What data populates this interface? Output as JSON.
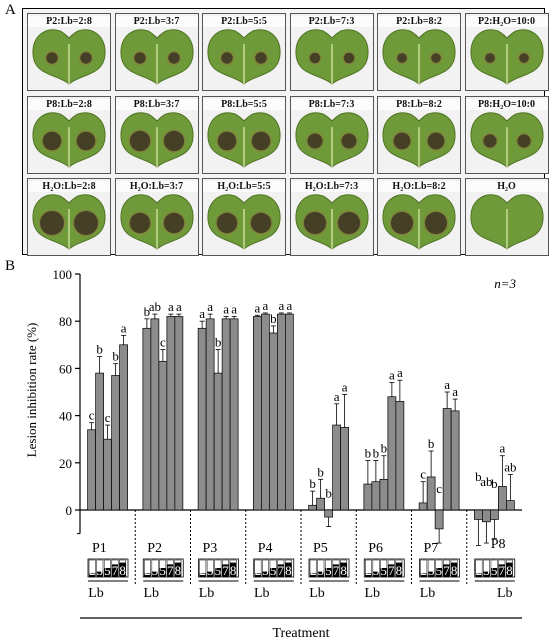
{
  "panel_a": {
    "label": "A",
    "rows": [
      [
        "P2:Lb=2:8",
        "P2:Lb=3:7",
        "P2:Lb=5:5",
        "P2:Lb=7:3",
        "P2:Lb=8:2",
        "P2:H₂O=10:0"
      ],
      [
        "P8:Lb=2:8",
        "P8:Lb=3:7",
        "P8:Lb=5:5",
        "P8:Lb=7:3",
        "P8:Lb=8:2",
        "P8:H₂O=10:0"
      ],
      [
        "H₂O:Lb=2:8",
        "H₂O:Lb=3:7",
        "H₂O:Lb=5:5",
        "H₂O:Lb=7:3",
        "H₂O:Lb=8:2",
        "H₂O"
      ]
    ],
    "lesion_level": [
      [
        0.3,
        0.3,
        0.3,
        0.25,
        0.2,
        0.2
      ],
      [
        0.7,
        0.8,
        0.7,
        0.5,
        0.6,
        0.4
      ],
      [
        1.0,
        0.8,
        0.8,
        0.9,
        0.9,
        0.0
      ]
    ]
  },
  "chart_data": {
    "panel_label": "B",
    "type": "bar",
    "ylabel": "Lesion inhibition rate (%)",
    "xlabel": "Treatment",
    "ylim": [
      -10,
      100
    ],
    "yticks": [
      0,
      20,
      40,
      60,
      80,
      100
    ],
    "annotation": "n=3",
    "grid": false,
    "groups": [
      {
        "name": "P1",
        "values": [
          34,
          58,
          30,
          57,
          70
        ],
        "errors": [
          3,
          7,
          6,
          5,
          4
        ],
        "labels": [
          "c",
          "b",
          "c",
          "b",
          "a"
        ]
      },
      {
        "name": "P2",
        "values": [
          77,
          81,
          63,
          82,
          82
        ],
        "errors": [
          4,
          2,
          5,
          1,
          1
        ],
        "labels": [
          "b",
          "ab",
          "c",
          "a",
          "a"
        ]
      },
      {
        "name": "P3",
        "values": [
          77,
          81,
          58,
          81,
          81
        ],
        "errors": [
          3,
          2,
          10,
          1,
          1
        ],
        "labels": [
          "a",
          "a",
          "b",
          "a",
          "a"
        ]
      },
      {
        "name": "P4",
        "values": [
          82,
          83,
          75,
          83,
          83
        ],
        "errors": [
          0.5,
          0.5,
          3,
          0.5,
          0.5
        ],
        "labels": [
          "a",
          "a",
          "b",
          "a",
          "a"
        ]
      },
      {
        "name": "P5",
        "values": [
          2,
          5,
          -3,
          36,
          35
        ],
        "errors": [
          6,
          8,
          4,
          9,
          14
        ],
        "labels": [
          "b",
          "b",
          "b",
          "a",
          "a"
        ]
      },
      {
        "name": "P6",
        "values": [
          11,
          12,
          13,
          48,
          46
        ],
        "errors": [
          10,
          9,
          10,
          6,
          9
        ],
        "labels": [
          "b",
          "b",
          "b",
          "a",
          "a"
        ]
      },
      {
        "name": "P7",
        "values": [
          3,
          14,
          -8,
          43,
          42
        ],
        "errors": [
          9,
          11,
          6,
          7,
          5
        ],
        "labels": [
          "c",
          "b",
          "c",
          "a",
          "a"
        ]
      },
      {
        "name": "P8",
        "values": [
          -4,
          -5,
          -4,
          10,
          4
        ],
        "errors": [
          11,
          9,
          8,
          13,
          11
        ],
        "labels": [
          "b",
          "ab",
          "b",
          "a",
          "ab"
        ]
      }
    ],
    "ratio_icon": {
      "digits": [
        "2",
        "3",
        "5",
        "7",
        "8"
      ],
      "sub_label": "Lb"
    },
    "colors": {
      "bar": "#8c8c8c",
      "bar_edge": "#000000"
    }
  }
}
